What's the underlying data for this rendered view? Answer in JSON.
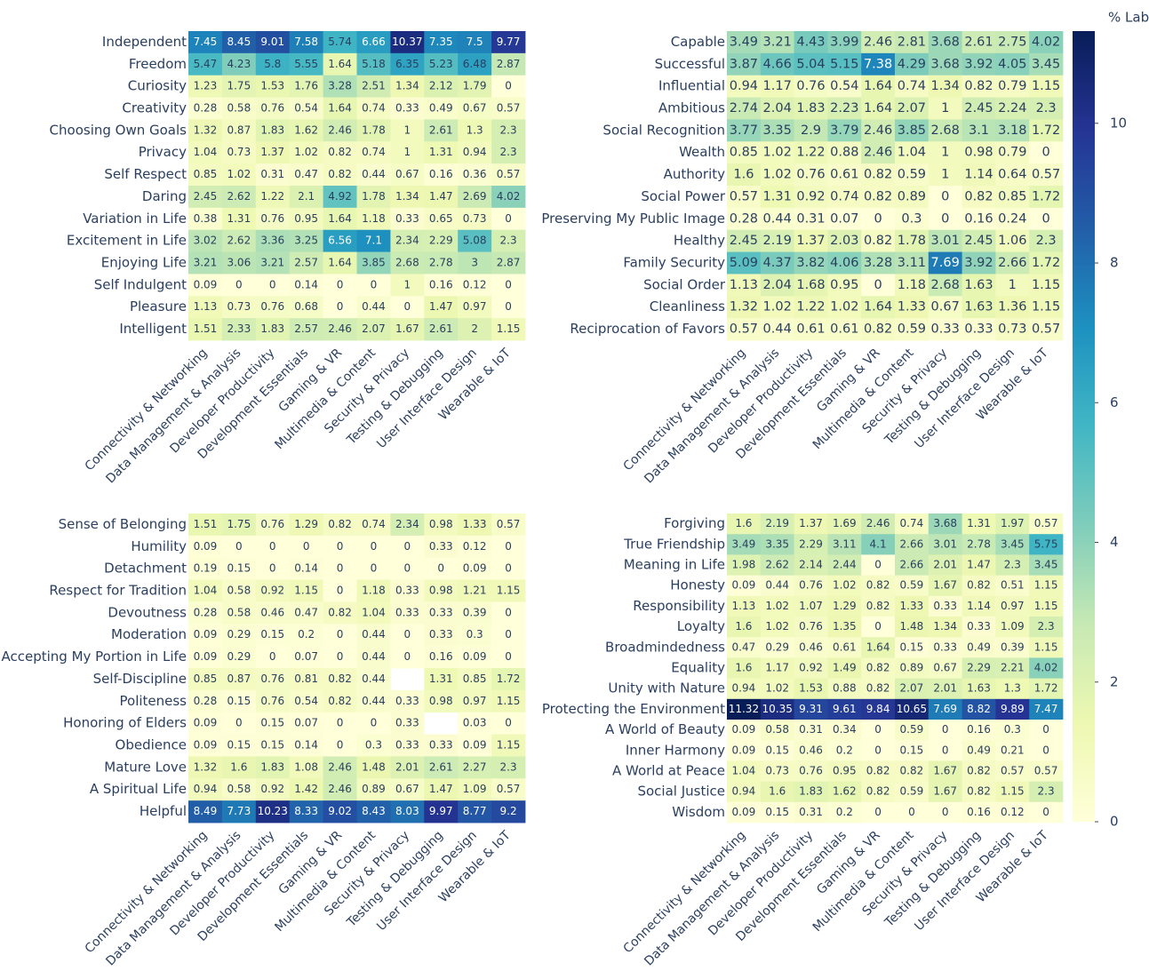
{
  "colorbar": {
    "title": "% Labels",
    "zlim": [
      0,
      11.32
    ],
    "ticks": [
      0,
      2,
      4,
      6,
      8,
      10
    ],
    "colorscale": [
      "#ffffd9",
      "#edf8b1",
      "#c7e9b4",
      "#7fcdbb",
      "#41b6c4",
      "#1d91c0",
      "#225ea8",
      "#253494",
      "#081d58"
    ]
  },
  "chart_data": [
    {
      "type": "heatmap",
      "categories": [
        "Connectivity & Networking",
        "Data Management & Analysis",
        "Developer Productivity",
        "Development Essentials",
        "Gaming & VR",
        "Multimedia & Content",
        "Security & Privacy",
        "Testing & Debugging",
        "User Interface Design",
        "Wearable & IoT"
      ],
      "rows": [
        "Independent",
        "Freedom",
        "Curiosity",
        "Creativity",
        "Choosing Own Goals",
        "Privacy",
        "Self Respect",
        "Daring",
        "Variation in Life",
        "Excitement in Life",
        "Enjoying Life",
        "Self Indulgent",
        "Pleasure",
        "Intelligent"
      ],
      "values": [
        [
          7.45,
          8.45,
          9.01,
          7.58,
          5.74,
          6.66,
          10.37,
          7.35,
          7.5,
          9.77
        ],
        [
          5.47,
          4.23,
          5.8,
          5.55,
          1.64,
          5.18,
          6.35,
          5.23,
          6.48,
          2.87
        ],
        [
          1.23,
          1.75,
          1.53,
          1.76,
          3.28,
          2.51,
          1.34,
          2.12,
          1.79,
          0
        ],
        [
          0.28,
          0.58,
          0.76,
          0.54,
          1.64,
          0.74,
          0.33,
          0.49,
          0.67,
          0.57
        ],
        [
          1.32,
          0.87,
          1.83,
          1.62,
          2.46,
          1.78,
          1,
          2.61,
          1.3,
          2.3
        ],
        [
          1.04,
          0.73,
          1.37,
          1.02,
          0.82,
          0.74,
          1,
          1.31,
          0.94,
          2.3
        ],
        [
          0.85,
          1.02,
          0.31,
          0.47,
          0.82,
          0.44,
          0.67,
          0.16,
          0.36,
          0.57
        ],
        [
          2.45,
          2.62,
          1.22,
          2.1,
          4.92,
          1.78,
          1.34,
          1.47,
          2.69,
          4.02
        ],
        [
          0.38,
          1.31,
          0.76,
          0.95,
          1.64,
          1.18,
          0.33,
          0.65,
          0.73,
          0
        ],
        [
          3.02,
          2.62,
          3.36,
          3.25,
          6.56,
          7.1,
          2.34,
          2.29,
          5.08,
          2.3
        ],
        [
          3.21,
          3.06,
          3.21,
          2.57,
          1.64,
          3.85,
          2.68,
          2.78,
          3,
          2.87
        ],
        [
          0.09,
          0,
          0,
          0.14,
          0,
          0,
          1,
          0.16,
          0.12,
          0
        ],
        [
          1.13,
          0.73,
          0.76,
          0.68,
          0,
          0.44,
          0,
          1.47,
          0.97,
          0
        ],
        [
          1.51,
          2.33,
          1.83,
          2.57,
          2.46,
          2.07,
          1.67,
          2.61,
          2,
          1.15
        ]
      ]
    },
    {
      "type": "heatmap",
      "categories": [
        "Connectivity & Networking",
        "Data Management & Analysis",
        "Developer Productivity",
        "Development Essentials",
        "Gaming & VR",
        "Multimedia & Content",
        "Security & Privacy",
        "Testing & Debugging",
        "User Interface Design",
        "Wearable & IoT"
      ],
      "rows": [
        "Capable",
        "Successful",
        "Influential",
        "Ambitious",
        "Social Recognition",
        "Wealth",
        "Authority",
        "Social Power",
        "Preserving My Public Image",
        "Healthy",
        "Family Security",
        "Social Order",
        "Cleanliness",
        "Reciprocation of Favors"
      ],
      "values": [
        [
          3.49,
          3.21,
          4.43,
          3.99,
          2.46,
          2.81,
          3.68,
          2.61,
          2.75,
          4.02
        ],
        [
          3.87,
          4.66,
          5.04,
          5.15,
          7.38,
          4.29,
          3.68,
          3.92,
          4.05,
          3.45
        ],
        [
          0.94,
          1.17,
          0.76,
          0.54,
          1.64,
          0.74,
          1.34,
          0.82,
          0.79,
          1.15
        ],
        [
          2.74,
          2.04,
          1.83,
          2.23,
          1.64,
          2.07,
          1,
          2.45,
          2.24,
          2.3
        ],
        [
          3.77,
          3.35,
          2.9,
          3.79,
          2.46,
          3.85,
          2.68,
          3.1,
          3.18,
          1.72
        ],
        [
          0.85,
          1.02,
          1.22,
          0.88,
          2.46,
          1.04,
          1,
          0.98,
          0.79,
          0
        ],
        [
          1.6,
          1.02,
          0.76,
          0.61,
          0.82,
          0.59,
          1,
          1.14,
          0.64,
          0.57
        ],
        [
          0.57,
          1.31,
          0.92,
          0.74,
          0.82,
          0.89,
          0,
          0.82,
          0.85,
          1.72
        ],
        [
          0.28,
          0.44,
          0.31,
          0.07,
          0,
          0.3,
          0,
          0.16,
          0.24,
          0
        ],
        [
          2.45,
          2.19,
          1.37,
          2.03,
          0.82,
          1.78,
          3.01,
          2.45,
          1.06,
          2.3
        ],
        [
          5.09,
          4.37,
          3.82,
          4.06,
          3.28,
          3.11,
          7.69,
          3.92,
          2.66,
          1.72
        ],
        [
          1.13,
          2.04,
          1.68,
          0.95,
          0,
          1.18,
          2.68,
          1.63,
          1,
          1.15
        ],
        [
          1.32,
          1.02,
          1.22,
          1.02,
          1.64,
          1.33,
          0.67,
          1.63,
          1.36,
          1.15
        ],
        [
          0.57,
          0.44,
          0.61,
          0.61,
          0.82,
          0.59,
          0.33,
          0.33,
          0.73,
          0.57
        ]
      ]
    },
    {
      "type": "heatmap",
      "categories": [
        "Connectivity & Networking",
        "Data Management & Analysis",
        "Developer Productivity",
        "Development Essentials",
        "Gaming & VR",
        "Multimedia & Content",
        "Security & Privacy",
        "Testing & Debugging",
        "User Interface Design",
        "Wearable & IoT"
      ],
      "rows": [
        "Sense of Belonging",
        "Humility",
        "Detachment",
        "Respect for Tradition",
        "Devoutness",
        "Moderation",
        "Accepting My Portion in Life",
        "Self-Discipline",
        "Politeness",
        "Honoring of Elders",
        "Obedience",
        "Mature Love",
        "A Spiritual Life",
        "Helpful"
      ],
      "values": [
        [
          1.51,
          1.75,
          0.76,
          1.29,
          0.82,
          0.74,
          2.34,
          0.98,
          1.33,
          0.57
        ],
        [
          0.09,
          0,
          0,
          0,
          0,
          0,
          0,
          0.33,
          0.12,
          0
        ],
        [
          0.19,
          0.15,
          0,
          0.14,
          0,
          0,
          0,
          0,
          0.09,
          0
        ],
        [
          1.04,
          0.58,
          0.92,
          1.15,
          0,
          1.18,
          0.33,
          0.98,
          1.21,
          1.15
        ],
        [
          0.28,
          0.58,
          0.46,
          0.47,
          0.82,
          1.04,
          0.33,
          0.33,
          0.39,
          0
        ],
        [
          0.09,
          0.29,
          0.15,
          0.2,
          0,
          0.44,
          0,
          0.33,
          0.3,
          0
        ],
        [
          0.09,
          0.29,
          0,
          0.07,
          0,
          0.44,
          0,
          0.16,
          0.09,
          0
        ],
        [
          0.85,
          0.87,
          0.76,
          0.81,
          0.82,
          0.44,
          null,
          1.31,
          0.85,
          1.72
        ],
        [
          0.28,
          0.15,
          0.76,
          0.54,
          0.82,
          0.44,
          0.33,
          0.98,
          0.97,
          1.15
        ],
        [
          0.09,
          0,
          0.15,
          0.07,
          0,
          0,
          0.33,
          null,
          0.03,
          0
        ],
        [
          0.09,
          0.15,
          0.15,
          0.14,
          0,
          0.3,
          0.33,
          0.33,
          0.09,
          1.15
        ],
        [
          1.32,
          1.6,
          1.83,
          1.08,
          2.46,
          1.48,
          2.01,
          2.61,
          2.27,
          2.3
        ],
        [
          0.94,
          0.58,
          0.92,
          1.42,
          2.46,
          0.89,
          0.67,
          1.47,
          1.09,
          0.57
        ],
        [
          8.49,
          7.73,
          10.23,
          8.33,
          9.02,
          8.43,
          8.03,
          9.97,
          8.77,
          9.2
        ]
      ]
    },
    {
      "type": "heatmap",
      "categories": [
        "Connectivity & Networking",
        "Data Management & Analysis",
        "Developer Productivity",
        "Development Essentials",
        "Gaming & VR",
        "Multimedia & Content",
        "Security & Privacy",
        "Testing & Debugging",
        "User Interface Design",
        "Wearable & IoT"
      ],
      "rows": [
        "Forgiving",
        "True Friendship",
        "Meaning in Life",
        "Honesty",
        "Responsibility",
        "Loyalty",
        "Broadmindedness",
        "Equality",
        "Unity with Nature",
        "Protecting the Environment",
        "A World of Beauty",
        "Inner Harmony",
        "A World at Peace",
        "Social Justice",
        "Wisdom"
      ],
      "values": [
        [
          1.6,
          2.19,
          1.37,
          1.69,
          2.46,
          0.74,
          3.68,
          1.31,
          1.97,
          0.57
        ],
        [
          3.49,
          3.35,
          2.29,
          3.11,
          4.1,
          2.66,
          3.01,
          2.78,
          3.45,
          5.75
        ],
        [
          1.98,
          2.62,
          2.14,
          2.44,
          0,
          2.66,
          2.01,
          1.47,
          2.3,
          3.45
        ],
        [
          0.09,
          0.44,
          0.76,
          1.02,
          0.82,
          0.59,
          1.67,
          0.82,
          0.51,
          1.15
        ],
        [
          1.13,
          1.02,
          1.07,
          1.29,
          0.82,
          1.33,
          0.33,
          1.14,
          0.97,
          1.15
        ],
        [
          1.6,
          1.02,
          0.76,
          1.35,
          0,
          1.48,
          1.34,
          0.33,
          1.09,
          2.3
        ],
        [
          0.47,
          0.29,
          0.46,
          0.61,
          1.64,
          0.15,
          0.33,
          0.49,
          0.39,
          1.15
        ],
        [
          1.6,
          1.17,
          0.92,
          1.49,
          0.82,
          0.89,
          0.67,
          2.29,
          2.21,
          4.02
        ],
        [
          0.94,
          1.02,
          1.53,
          0.88,
          0.82,
          2.07,
          2.01,
          1.63,
          1.3,
          1.72
        ],
        [
          11.32,
          10.35,
          9.31,
          9.61,
          9.84,
          10.65,
          7.69,
          8.82,
          9.89,
          7.47
        ],
        [
          0.09,
          0.58,
          0.31,
          0.34,
          0,
          0.59,
          0,
          0.16,
          0.3,
          0
        ],
        [
          0.09,
          0.15,
          0.46,
          0.2,
          0,
          0.15,
          0,
          0.49,
          0.21,
          0
        ],
        [
          1.04,
          0.73,
          0.76,
          0.95,
          0.82,
          0.82,
          1.67,
          0.82,
          0.57,
          0.57
        ],
        [
          0.94,
          1.6,
          1.83,
          1.62,
          0.82,
          0.59,
          1.67,
          0.82,
          1.15,
          2.3
        ],
        [
          0.09,
          0.15,
          0.31,
          0.2,
          0,
          0,
          0,
          0.16,
          0.12,
          0
        ]
      ]
    }
  ]
}
